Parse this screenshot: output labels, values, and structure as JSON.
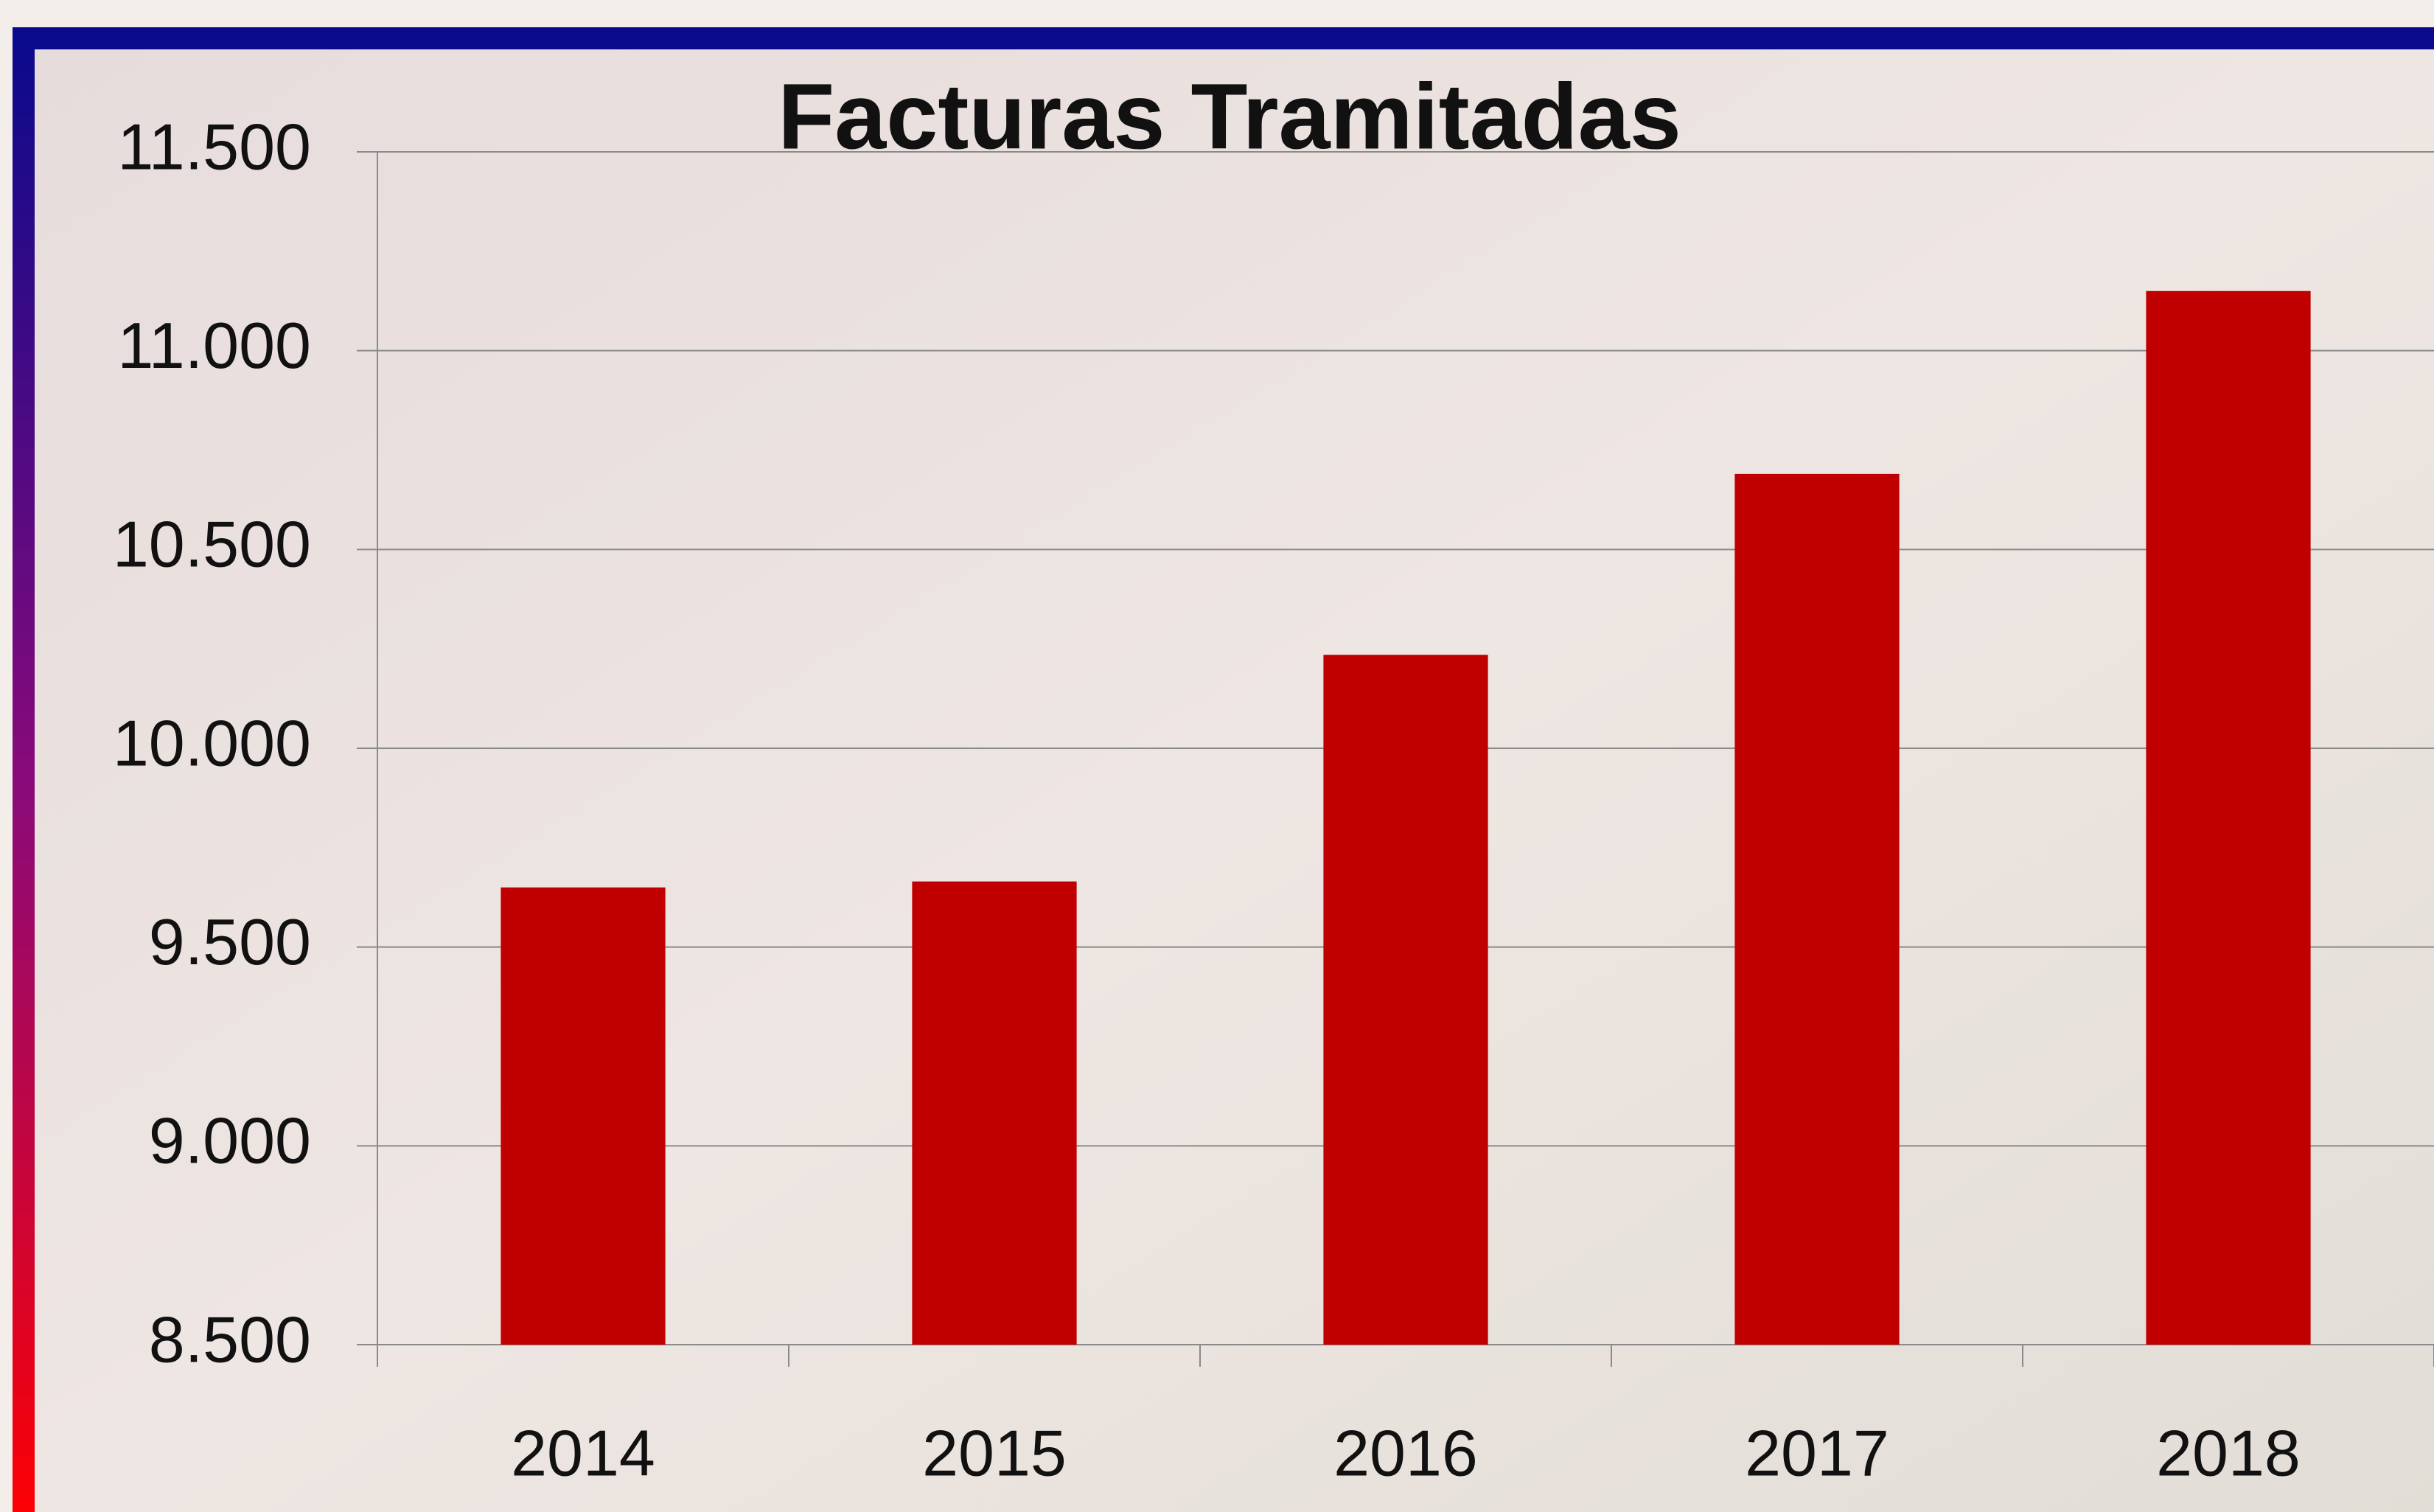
{
  "chart_data": {
    "type": "bar",
    "title": "Facturas Tramitadas",
    "categories": [
      "2014",
      "2015",
      "2016",
      "2017",
      "2018"
    ],
    "values": [
      9650,
      9665,
      10235,
      10690,
      11150
    ],
    "color": "#c00000",
    "ylim": [
      8500,
      11500
    ],
    "yticks": [
      {
        "value": 8500,
        "label": "8.500"
      },
      {
        "value": 9000,
        "label": "9.000"
      },
      {
        "value": 9500,
        "label": "9.500"
      },
      {
        "value": 10000,
        "label": "10.000"
      },
      {
        "value": 10500,
        "label": "10.500"
      },
      {
        "value": 11000,
        "label": "11.000"
      },
      {
        "value": 11500,
        "label": "11.500"
      }
    ],
    "grid": true
  }
}
